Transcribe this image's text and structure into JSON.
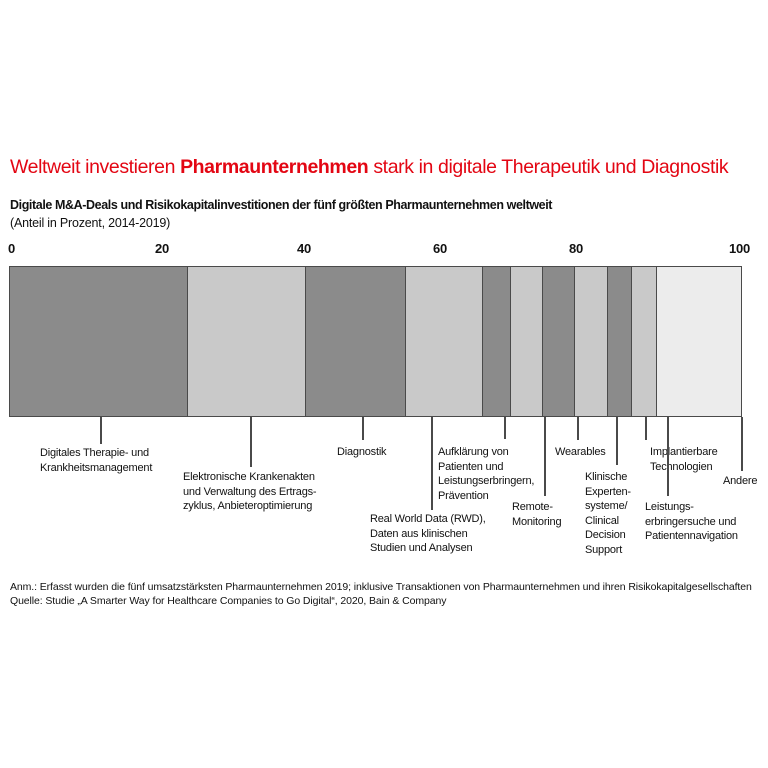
{
  "title": {
    "prefix": "Weltweit investieren ",
    "highlight": "Pharmaunternehmen",
    "suffix": " stark in digitale Therapeutik und Diagnostik"
  },
  "subtitle": "Digitale M&A-Deals und Risikokapitalinvestitionen der fünf größten Pharmaunternehmen weltweit",
  "unit_note": "(Anteil in Prozent, 2014-2019)",
  "footnotes": {
    "note": "Anm.: Erfasst wurden die fünf umsatzstärksten Pharmaunternehmen 2019; inklusive Transaktionen von Pharmaunternehmen und ihren Risikokapitalgesellschaften",
    "source": "Quelle: Studie „A Smarter Way for Healthcare Companies to Go Digital“, 2020, Bain & Company"
  },
  "colors": {
    "accent_red": "#e30613",
    "bar_dark": "#8b8b8b",
    "bar_light": "#c9c9c9",
    "bar_lightest": "#ececec",
    "bar_border": "#4a4a4a",
    "text": "#111111"
  },
  "chart_data": {
    "type": "bar",
    "variant": "horizontal-stacked-100-percent",
    "title": "Weltweit investieren Pharmaunternehmen stark in digitale Therapeutik und Diagnostik",
    "subtitle": "Digitale M&A-Deals und Risikokapitalinvestitionen der fünf größten Pharmaunternehmen weltweit",
    "unit": "Anteil in Prozent, 2014-2019",
    "xlim": [
      0,
      100
    ],
    "x_ticks": [
      "0",
      "20",
      "40",
      "60",
      "80",
      "100"
    ],
    "grid": false,
    "legend": "none",
    "segments": [
      {
        "label": "Digitales Therapie- und Krankheitsmanagement",
        "label_lines": [
          "Digitales Therapie- und",
          "Krankheitsmanagement"
        ],
        "value": 24,
        "shade": "dark"
      },
      {
        "label": "Elektronische Krankenakten und Verwaltung des Ertragszyklus, Anbieteroptimierung",
        "label_lines": [
          "Elektronische Krankenakten",
          "und Verwaltung des Ertrags-",
          "zyklus, Anbieteroptimierung"
        ],
        "value": 16,
        "shade": "light"
      },
      {
        "label": "Diagnostik",
        "label_lines": [
          "Diagnostik"
        ],
        "value": 13.5,
        "shade": "dark"
      },
      {
        "label": "Real World Data (RWD), Daten aus klinischen Studien und Analysen",
        "label_lines": [
          "Real World Data (RWD),",
          "Daten aus klinischen",
          "Studien und Analysen"
        ],
        "value": 10.5,
        "shade": "light"
      },
      {
        "label": "Aufklärung von Patienten und Leistungserbringern, Prävention",
        "label_lines": [
          "Aufklärung von",
          "Patienten und",
          "Leistungserbringern,",
          "Prävention"
        ],
        "value": 4,
        "shade": "dark"
      },
      {
        "label": "Remote-Monitoring",
        "label_lines": [
          "Remote-",
          "Monitoring"
        ],
        "value": 4.5,
        "shade": "light"
      },
      {
        "label": "Wearables",
        "label_lines": [
          "Wearables"
        ],
        "value": 4.5,
        "shade": "dark"
      },
      {
        "label": "Klinische Expertensysteme/Clinical Decision Support",
        "label_lines": [
          "Klinische",
          "Experten-",
          "systeme/",
          "Clinical",
          "Decision",
          "Support"
        ],
        "value": 4.5,
        "shade": "light"
      },
      {
        "label": "Implantierbare Technologien",
        "label_lines": [
          "Implantierbare",
          "Technologien"
        ],
        "value": 3.5,
        "shade": "dark"
      },
      {
        "label": "Leistungserbringersuche und Patientennavigation",
        "label_lines": [
          "Leistungs-",
          "erbringersuche und",
          "Patientennavigation"
        ],
        "value": 3.5,
        "shade": "light"
      },
      {
        "label": "Andere",
        "label_lines": [
          "Andere"
        ],
        "value": 11.5,
        "shade": "lightest"
      }
    ]
  }
}
